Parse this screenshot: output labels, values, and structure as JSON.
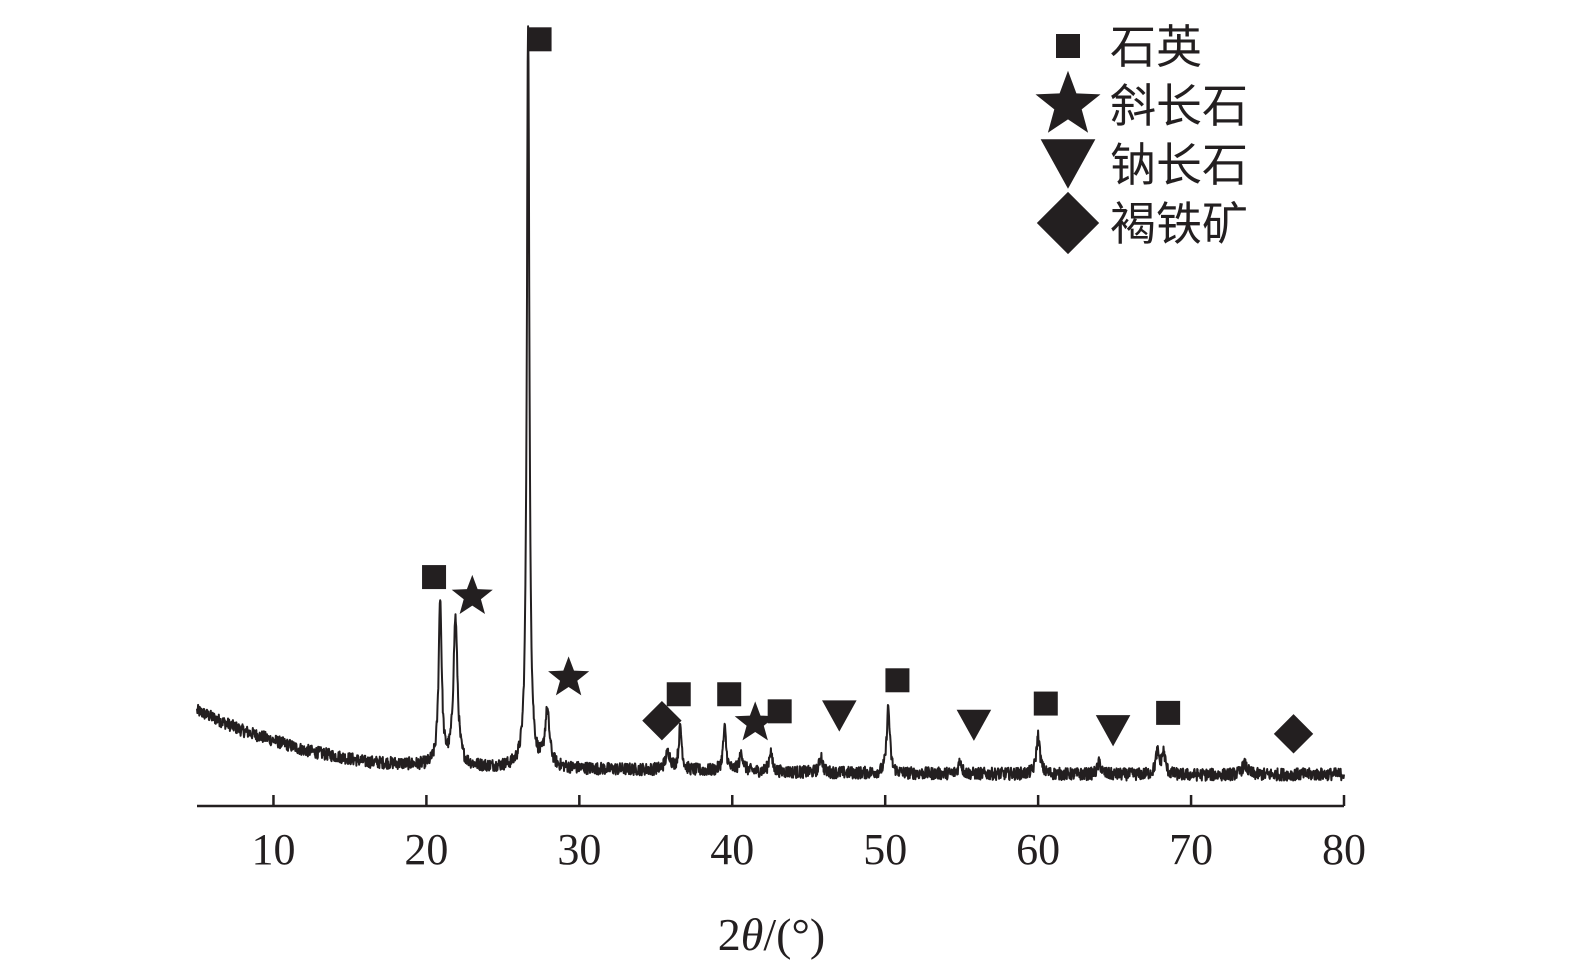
{
  "chart_data": {
    "type": "line",
    "title": "",
    "xlabel_prefix": "2",
    "xlabel_theta": "θ",
    "xlabel_suffix": "/(°)",
    "ylabel": "",
    "xlim": [
      5,
      80
    ],
    "ylim": [
      0,
      100
    ],
    "xticks": [
      10,
      20,
      30,
      40,
      50,
      60,
      70,
      80
    ],
    "grid": false,
    "y_axis_shown": false,
    "color": "#231f20",
    "legend": {
      "placement": "top-right",
      "entries": [
        {
          "phase": "quartz",
          "marker": "square",
          "label": "石英"
        },
        {
          "phase": "plagioclase",
          "marker": "star",
          "label": "斜长石"
        },
        {
          "phase": "albite",
          "marker": "triangle-down",
          "label": "钠长石"
        },
        {
          "phase": "limonite",
          "marker": "diamond",
          "label": "褐铁矿"
        }
      ]
    },
    "baseline": [
      [
        5,
        12.3
      ],
      [
        8,
        9.7
      ],
      [
        12,
        7.2
      ],
      [
        16,
        5.7
      ],
      [
        20,
        5.2
      ],
      [
        24,
        5.0
      ],
      [
        30,
        4.8
      ],
      [
        36,
        4.6
      ],
      [
        42,
        4.4
      ],
      [
        50,
        4.2
      ],
      [
        60,
        4.1
      ],
      [
        70,
        4.0
      ],
      [
        80,
        4.1
      ]
    ],
    "noise_amplitude": 0.8,
    "peaks": [
      {
        "x": 20.9,
        "height": 21.5,
        "width": 0.12,
        "phase": "quartz"
      },
      {
        "x": 21.9,
        "height": 19.0,
        "width": 0.16,
        "phase": "plagioclase"
      },
      {
        "x": 26.65,
        "height": 96.0,
        "width": 0.1,
        "phase": "quartz"
      },
      {
        "x": 27.9,
        "height": 7.0,
        "width": 0.18,
        "phase": "plagioclase"
      },
      {
        "x": 35.8,
        "height": 2.2,
        "width": 0.2,
        "phase": "limonite"
      },
      {
        "x": 36.6,
        "height": 5.5,
        "width": 0.12,
        "phase": "quartz"
      },
      {
        "x": 39.5,
        "height": 5.5,
        "width": 0.12,
        "phase": "quartz"
      },
      {
        "x": 40.6,
        "height": 2.3,
        "width": 0.15,
        "phase": "plagioclase"
      },
      {
        "x": 42.5,
        "height": 2.7,
        "width": 0.12,
        "phase": "quartz"
      },
      {
        "x": 45.8,
        "height": 2.2,
        "width": 0.12,
        "phase": "albite"
      },
      {
        "x": 50.2,
        "height": 8.6,
        "width": 0.12,
        "phase": "quartz"
      },
      {
        "x": 54.9,
        "height": 1.8,
        "width": 0.12,
        "phase": "albite"
      },
      {
        "x": 60.0,
        "height": 5.0,
        "width": 0.14,
        "phase": "quartz"
      },
      {
        "x": 64.0,
        "height": 1.5,
        "width": 0.14,
        "phase": "albite"
      },
      {
        "x": 67.8,
        "height": 2.8,
        "width": 0.14,
        "phase": "quartz"
      },
      {
        "x": 68.2,
        "height": 2.8,
        "width": 0.14,
        "phase": "quartz"
      },
      {
        "x": 73.5,
        "height": 1.3,
        "width": 0.2,
        "phase": "limonite"
      }
    ],
    "annotations": [
      {
        "marker": "square",
        "phase": "quartz",
        "x": 27.4,
        "y": 98.8
      },
      {
        "marker": "square",
        "phase": "quartz",
        "x": 20.5,
        "y": 29.5
      },
      {
        "marker": "star",
        "phase": "plagioclase",
        "x": 23.0,
        "y": 27.0
      },
      {
        "marker": "star",
        "phase": "plagioclase",
        "x": 29.3,
        "y": 16.5
      },
      {
        "marker": "diamond",
        "phase": "limonite",
        "x": 35.4,
        "y": 11.0
      },
      {
        "marker": "square",
        "phase": "quartz",
        "x": 36.5,
        "y": 14.4
      },
      {
        "marker": "square",
        "phase": "quartz",
        "x": 39.8,
        "y": 14.4
      },
      {
        "marker": "star",
        "phase": "plagioclase",
        "x": 41.5,
        "y": 10.7
      },
      {
        "marker": "square",
        "phase": "quartz",
        "x": 43.1,
        "y": 12.2
      },
      {
        "marker": "triangle-down",
        "phase": "albite",
        "x": 47.0,
        "y": 11.6
      },
      {
        "marker": "square",
        "phase": "quartz",
        "x": 50.8,
        "y": 16.2
      },
      {
        "marker": "triangle-down",
        "phase": "albite",
        "x": 55.8,
        "y": 10.4
      },
      {
        "marker": "square",
        "phase": "quartz",
        "x": 60.5,
        "y": 13.2
      },
      {
        "marker": "triangle-down",
        "phase": "albite",
        "x": 64.9,
        "y": 9.7
      },
      {
        "marker": "square",
        "phase": "quartz",
        "x": 68.5,
        "y": 12.0
      },
      {
        "marker": "diamond",
        "phase": "limonite",
        "x": 76.7,
        "y": 9.3
      }
    ]
  }
}
